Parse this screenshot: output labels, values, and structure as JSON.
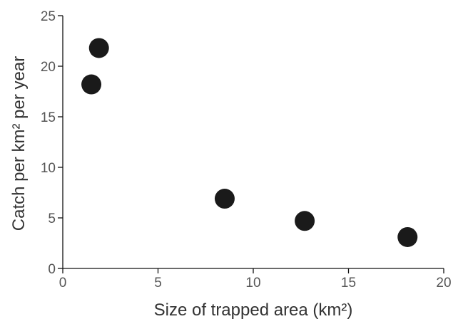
{
  "chart_data": {
    "type": "scatter",
    "title": "",
    "xlabel": "Size of trapped area (km²)",
    "ylabel": "Catch per km² per year",
    "xlim": [
      0,
      20
    ],
    "ylim": [
      0,
      25
    ],
    "xticks": [
      0,
      5,
      10,
      15,
      20
    ],
    "yticks": [
      0,
      5,
      10,
      15,
      20,
      25
    ],
    "grid": false,
    "legend": "none",
    "marker_color": "#1a1a1a",
    "points": [
      {
        "x": 1.5,
        "y": 18.2
      },
      {
        "x": 1.9,
        "y": 21.8
      },
      {
        "x": 8.5,
        "y": 6.9
      },
      {
        "x": 12.7,
        "y": 4.7
      },
      {
        "x": 18.1,
        "y": 3.1
      }
    ]
  }
}
